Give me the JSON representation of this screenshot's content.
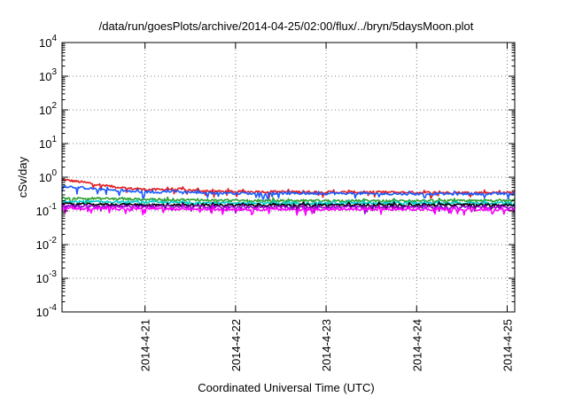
{
  "chart_data": {
    "type": "line",
    "title": "/data/run/goesPlots/archive/2014-04-25/02:00/flux/../bryn/5daysMoon.plot",
    "xlabel": "Coordinated Universal Time (UTC)",
    "ylabel": "cSv/day",
    "yscale": "log",
    "ylim": [
      0.0001,
      10000
    ],
    "xlim": [
      "2014-04-20T02:00",
      "2014-04-25T02:00"
    ],
    "grid": true,
    "yticks": [
      {
        "value": 0.0001,
        "base": "10",
        "exp": "-4"
      },
      {
        "value": 0.001,
        "base": "10",
        "exp": "-3"
      },
      {
        "value": 0.01,
        "base": "10",
        "exp": "-2"
      },
      {
        "value": 0.1,
        "base": "10",
        "exp": "-1"
      },
      {
        "value": 1,
        "base": "10",
        "exp": "0"
      },
      {
        "value": 10,
        "base": "10",
        "exp": "1"
      },
      {
        "value": 100,
        "base": "10",
        "exp": "2"
      },
      {
        "value": 1000,
        "base": "10",
        "exp": "3"
      },
      {
        "value": 10000,
        "base": "10",
        "exp": "4"
      }
    ],
    "xticks": [
      {
        "value": "2014-04-21T00:00",
        "label": "2014-4-21"
      },
      {
        "value": "2014-04-22T00:00",
        "label": "2014-4-22"
      },
      {
        "value": "2014-04-23T00:00",
        "label": "2014-4-23"
      },
      {
        "value": "2014-04-24T00:00",
        "label": "2014-4-24"
      },
      {
        "value": "2014-04-25T00:00",
        "label": "2014-4-25"
      }
    ],
    "series": [
      {
        "color": "#e41a1c",
        "x": [
          "2014-04-20T02:00",
          "2014-04-20T08:00",
          "2014-04-20T14:00",
          "2014-04-20T20:00",
          "2014-04-21T02:00",
          "2014-04-21T08:00",
          "2014-04-21T14:00",
          "2014-04-21T20:00",
          "2014-04-22T02:00",
          "2014-04-22T14:00",
          "2014-04-23T02:00",
          "2014-04-23T14:00",
          "2014-04-24T02:00",
          "2014-04-24T14:00",
          "2014-04-25T02:00"
        ],
        "values": [
          0.85,
          0.7,
          0.55,
          0.46,
          0.42,
          0.45,
          0.4,
          0.38,
          0.37,
          0.37,
          0.36,
          0.36,
          0.35,
          0.35,
          0.35
        ]
      },
      {
        "color": "#1a5cff",
        "x": [
          "2014-04-20T02:00",
          "2014-04-20T08:00",
          "2014-04-20T14:00",
          "2014-04-20T20:00",
          "2014-04-21T02:00",
          "2014-04-21T08:00",
          "2014-04-21T14:00",
          "2014-04-21T20:00",
          "2014-04-22T02:00",
          "2014-04-22T14:00",
          "2014-04-23T02:00",
          "2014-04-23T14:00",
          "2014-04-24T02:00",
          "2014-04-24T14:00",
          "2014-04-25T02:00"
        ],
        "values": [
          0.55,
          0.48,
          0.42,
          0.38,
          0.36,
          0.38,
          0.35,
          0.34,
          0.33,
          0.33,
          0.33,
          0.32,
          0.32,
          0.32,
          0.32
        ]
      },
      {
        "color": "#2ca02c",
        "x": [
          "2014-04-20T02:00",
          "2014-04-21T02:00",
          "2014-04-22T02:00",
          "2014-04-23T02:00",
          "2014-04-24T02:00",
          "2014-04-25T02:00"
        ],
        "values": [
          0.24,
          0.22,
          0.2,
          0.2,
          0.2,
          0.2
        ]
      },
      {
        "color": "#00cccc",
        "x": [
          "2014-04-20T02:00",
          "2014-04-21T02:00",
          "2014-04-22T02:00",
          "2014-04-23T02:00",
          "2014-04-24T02:00",
          "2014-04-25T02:00"
        ],
        "values": [
          0.19,
          0.18,
          0.17,
          0.17,
          0.17,
          0.17
        ]
      },
      {
        "color": "#000000",
        "x": [
          "2014-04-20T02:00",
          "2014-04-21T02:00",
          "2014-04-22T02:00",
          "2014-04-23T02:00",
          "2014-04-24T02:00",
          "2014-04-25T02:00"
        ],
        "values": [
          0.16,
          0.15,
          0.15,
          0.15,
          0.15,
          0.15
        ]
      },
      {
        "color": "#9900cc",
        "x": [
          "2014-04-20T02:00",
          "2014-04-21T02:00",
          "2014-04-22T02:00",
          "2014-04-23T02:00",
          "2014-04-24T02:00",
          "2014-04-25T02:00"
        ],
        "values": [
          0.14,
          0.135,
          0.13,
          0.13,
          0.13,
          0.13
        ]
      },
      {
        "color": "#ff00ff",
        "x": [
          "2014-04-20T02:00",
          "2014-04-21T02:00",
          "2014-04-22T02:00",
          "2014-04-23T02:00",
          "2014-04-24T02:00",
          "2014-04-25T02:00"
        ],
        "values": [
          0.12,
          0.115,
          0.11,
          0.11,
          0.11,
          0.11
        ]
      }
    ]
  }
}
